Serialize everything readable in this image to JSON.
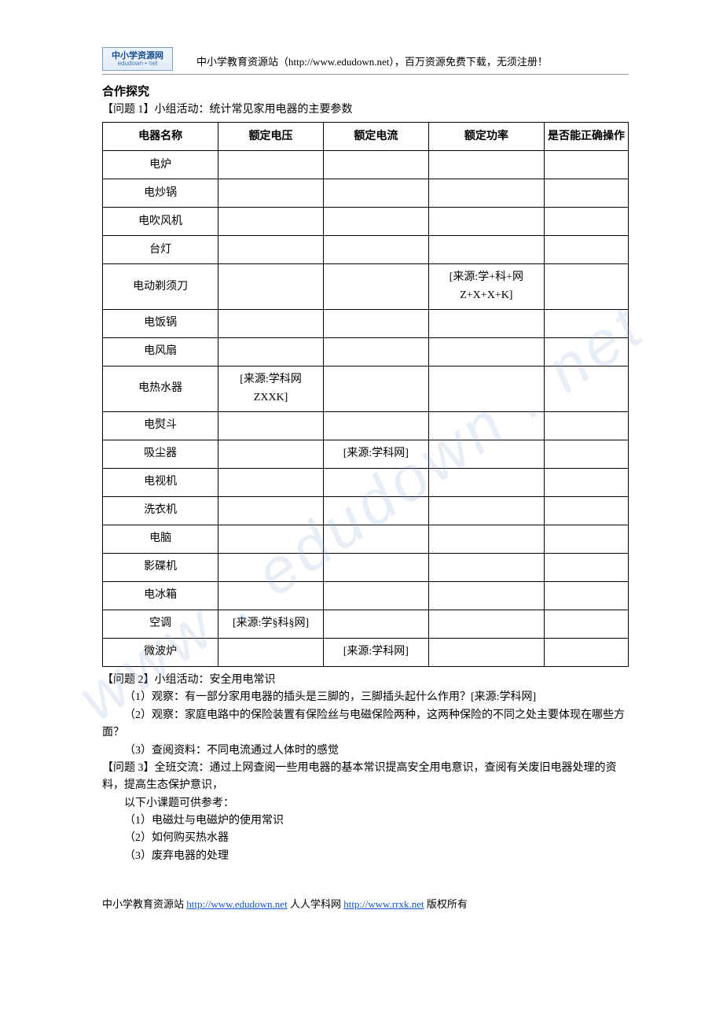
{
  "header": {
    "logo_line1": "中小学资源网",
    "logo_line2": "edudown • net",
    "text": "中小学教育资源站（http://www.edudown.net），百万资源免费下载，无须注册！"
  },
  "watermark": "www . edudown . net",
  "section_title": "合作探究",
  "q1": {
    "label": "【问题 1】小组活动：统计常见家用电器的主要参数",
    "columns": [
      "电器名称",
      "额定电压",
      "额定电流",
      "额定功率",
      "是否能正确操作"
    ],
    "rows": [
      {
        "name": "电炉",
        "v": "",
        "i": "",
        "p": "",
        "op": ""
      },
      {
        "name": "电炒锅",
        "v": "",
        "i": "",
        "p": "",
        "op": ""
      },
      {
        "name": "电吹风机",
        "v": "",
        "i": "",
        "p": "",
        "op": ""
      },
      {
        "name": "台灯",
        "v": "",
        "i": "",
        "p": "",
        "op": ""
      },
      {
        "name": "电动剃须刀",
        "v": "",
        "i": "",
        "p": "[来源:学+科+网 Z+X+X+K]",
        "op": ""
      },
      {
        "name": "电饭锅",
        "v": "",
        "i": "",
        "p": "",
        "op": ""
      },
      {
        "name": "电风扇",
        "v": "",
        "i": "",
        "p": "",
        "op": ""
      },
      {
        "name": "电热水器",
        "v": "[来源:学科网 ZXXK]",
        "i": "",
        "p": "",
        "op": ""
      },
      {
        "name": "电熨斗",
        "v": "",
        "i": "",
        "p": "",
        "op": ""
      },
      {
        "name": "吸尘器",
        "v": "",
        "i": "[来源:学科网]",
        "p": "",
        "op": ""
      },
      {
        "name": "电视机",
        "v": "",
        "i": "",
        "p": "",
        "op": ""
      },
      {
        "name": "洗衣机",
        "v": "",
        "i": "",
        "p": "",
        "op": ""
      },
      {
        "name": "电脑",
        "v": "",
        "i": "",
        "p": "",
        "op": ""
      },
      {
        "name": "影碟机",
        "v": "",
        "i": "",
        "p": "",
        "op": ""
      },
      {
        "name": "电冰箱",
        "v": "",
        "i": "",
        "p": "",
        "op": ""
      },
      {
        "name": "空调",
        "v": "[来源:学§科§网]",
        "i": "",
        "p": "",
        "op": ""
      },
      {
        "name": "微波炉",
        "v": "",
        "i": "[来源:学科网]",
        "p": "",
        "op": ""
      }
    ]
  },
  "q2": {
    "label": "【问题 2】小组活动：安全用电常识",
    "items": [
      "（1）观察：有一部分家用电器的插头是三脚的，三脚插头起什么作用？[来源:学科网]",
      "（2）观察：家庭电路中的保险装置有保险丝与电磁保险两种，这两种保险的不同之处主要体现在哪些方面？",
      "（3）查阅资料：不同电流通过人体时的感觉"
    ]
  },
  "q3": {
    "label": "【问题 3】全班交流：通过上网查阅一些用电器的基本常识提高安全用电意识，查阅有关废旧电器处理的资料，提高生态保护意识，",
    "lead": "以下小课题可供参考：",
    "items": [
      "（1）电磁灶与电磁炉的使用常识",
      "（2）如何购买热水器",
      "（3）废弃电器的处理"
    ]
  },
  "footer": {
    "t1": "中小学教育资源站 ",
    "link1": "http://www.edudown.net",
    "t2": "    人人学科网 ",
    "link2": "http://www.rrxk.net",
    "t3": "   版权所有"
  }
}
